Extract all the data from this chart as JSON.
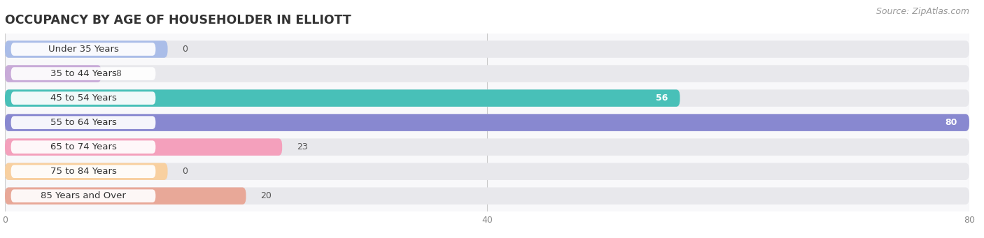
{
  "title": "OCCUPANCY BY AGE OF HOUSEHOLDER IN ELLIOTT",
  "source": "Source: ZipAtlas.com",
  "categories": [
    "Under 35 Years",
    "35 to 44 Years",
    "45 to 54 Years",
    "55 to 64 Years",
    "65 to 74 Years",
    "75 to 84 Years",
    "85 Years and Over"
  ],
  "values": [
    0,
    8,
    56,
    80,
    23,
    0,
    20
  ],
  "bar_colors": [
    "#aabde8",
    "#c8aad8",
    "#48c0b8",
    "#8888d0",
    "#f4a0bc",
    "#f8d0a0",
    "#e8a898"
  ],
  "bar_bg_color": "#e8e8ec",
  "row_bg_colors": [
    "#f0f0f4",
    "#f0f0f4",
    "#f0f0f4",
    "#f0f0f4",
    "#f0f0f4",
    "#f0f0f4",
    "#f0f0f4"
  ],
  "xlim": [
    0,
    80
  ],
  "xticks": [
    0,
    40,
    80
  ],
  "background_color": "#ffffff",
  "plot_bg_color": "#f8f8fa",
  "title_fontsize": 12.5,
  "label_fontsize": 9.5,
  "value_fontsize": 9,
  "source_fontsize": 9
}
